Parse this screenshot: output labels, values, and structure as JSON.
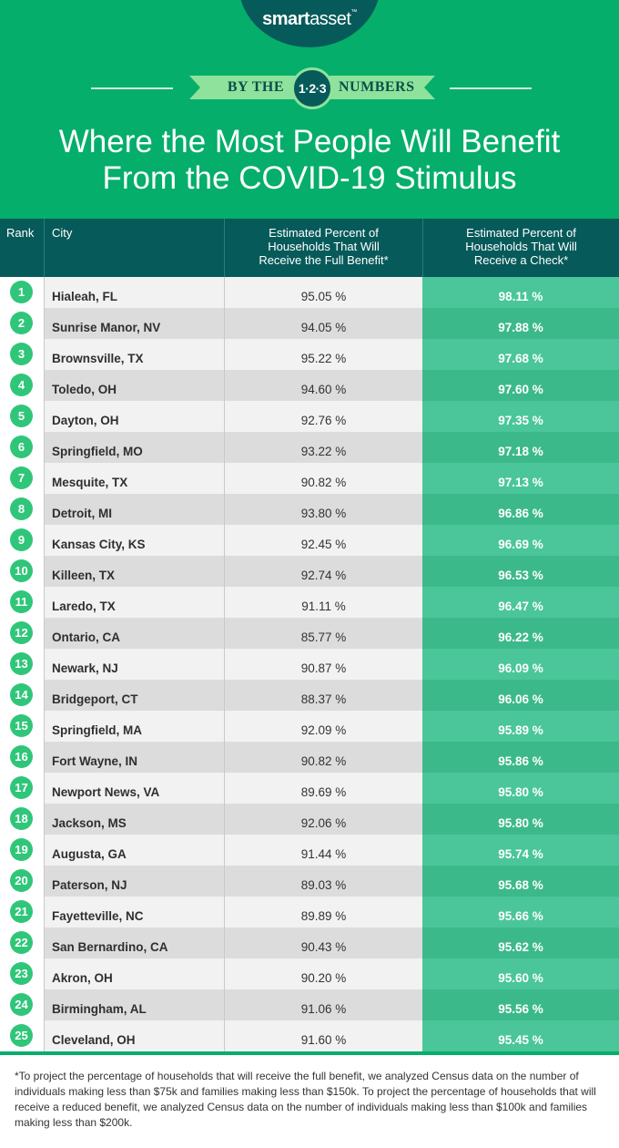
{
  "brand": {
    "name_bold": "smart",
    "name_light": "asset",
    "trademark": "™"
  },
  "banner": {
    "left": "BY THE",
    "badge": "1·2·3",
    "right": "NUMBERS"
  },
  "title": {
    "line1": "Where the Most People Will Benefit",
    "line2": "From the COVID-19 Stimulus"
  },
  "colors": {
    "header_green": "#05ae6a",
    "dark_teal": "#075a5a",
    "ribbon_green": "#8ee29b",
    "rank_green": "#30c67a",
    "check_green": "#4ac69a"
  },
  "table": {
    "headers": {
      "rank": "Rank",
      "city": "City",
      "full": [
        "Estimated Percent of",
        "Households That Will",
        "Receive the Full Benefit*"
      ],
      "check": [
        "Estimated Percent of",
        "Households That Will",
        "Receive a Check*"
      ]
    },
    "rows": [
      {
        "rank": "1",
        "city": "Hialeah, FL",
        "full": "95.05 %",
        "check": "98.11 %"
      },
      {
        "rank": "2",
        "city": "Sunrise Manor, NV",
        "full": "94.05 %",
        "check": "97.88 %"
      },
      {
        "rank": "3",
        "city": "Brownsville, TX",
        "full": "95.22 %",
        "check": "97.68 %"
      },
      {
        "rank": "4",
        "city": "Toledo, OH",
        "full": "94.60 %",
        "check": "97.60 %"
      },
      {
        "rank": "5",
        "city": "Dayton, OH",
        "full": "92.76 %",
        "check": "97.35 %"
      },
      {
        "rank": "6",
        "city": "Springfield, MO",
        "full": "93.22 %",
        "check": "97.18 %"
      },
      {
        "rank": "7",
        "city": "Mesquite, TX",
        "full": "90.82 %",
        "check": "97.13 %"
      },
      {
        "rank": "8",
        "city": "Detroit, MI",
        "full": "93.80 %",
        "check": "96.86 %"
      },
      {
        "rank": "9",
        "city": "Kansas City, KS",
        "full": "92.45 %",
        "check": "96.69 %"
      },
      {
        "rank": "10",
        "city": "Killeen, TX",
        "full": "92.74 %",
        "check": "96.53 %"
      },
      {
        "rank": "11",
        "city": "Laredo, TX",
        "full": "91.11 %",
        "check": "96.47 %"
      },
      {
        "rank": "12",
        "city": "Ontario, CA",
        "full": "85.77 %",
        "check": "96.22 %"
      },
      {
        "rank": "13",
        "city": "Newark, NJ",
        "full": "90.87 %",
        "check": "96.09 %"
      },
      {
        "rank": "14",
        "city": "Bridgeport, CT",
        "full": "88.37 %",
        "check": "96.06 %"
      },
      {
        "rank": "15",
        "city": "Springfield, MA",
        "full": "92.09 %",
        "check": "95.89 %"
      },
      {
        "rank": "16",
        "city": "Fort Wayne, IN",
        "full": "90.82 %",
        "check": "95.86 %"
      },
      {
        "rank": "17",
        "city": "Newport News, VA",
        "full": "89.69 %",
        "check": "95.80 %"
      },
      {
        "rank": "18",
        "city": "Jackson, MS",
        "full": "92.06 %",
        "check": "95.80 %"
      },
      {
        "rank": "19",
        "city": "Augusta, GA",
        "full": "91.44 %",
        "check": "95.74 %"
      },
      {
        "rank": "20",
        "city": "Paterson, NJ",
        "full": "89.03 %",
        "check": "95.68 %"
      },
      {
        "rank": "21",
        "city": "Fayetteville, NC",
        "full": "89.89 %",
        "check": "95.66 %"
      },
      {
        "rank": "22",
        "city": "San Bernardino, CA",
        "full": "90.43 %",
        "check": "95.62 %"
      },
      {
        "rank": "23",
        "city": "Akron, OH",
        "full": "90.20 %",
        "check": "95.60 %"
      },
      {
        "rank": "24",
        "city": "Birmingham, AL",
        "full": "91.06 %",
        "check": "95.56 %"
      },
      {
        "rank": "25",
        "city": "Cleveland, OH",
        "full": "91.60 %",
        "check": "95.45 %"
      }
    ]
  },
  "footnote": "*To project the percentage of households that will receive the full benefit, we analyzed Census data on the number of individuals making less than $75k and families making less than $150k. To project the percentage of households that will receive a reduced benefit, we analyzed Census data on the number of individuals making less than $100k and families making less than $200k."
}
